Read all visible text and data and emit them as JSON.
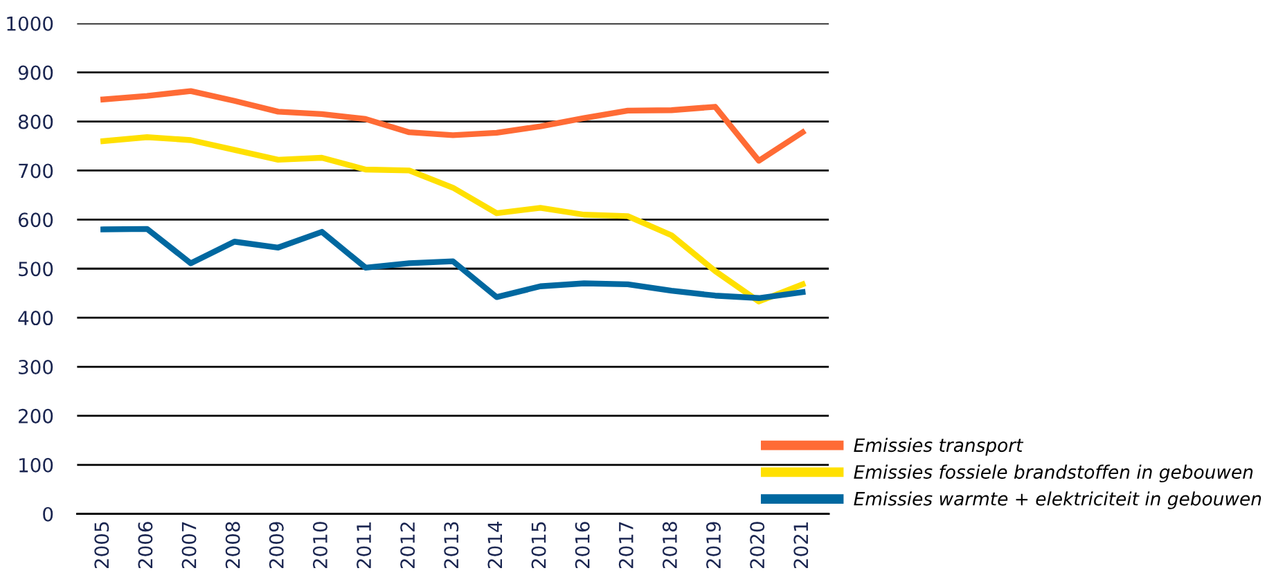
{
  "chart_data": {
    "type": "line",
    "categories": [
      "2005",
      "2006",
      "2007",
      "2008",
      "2009",
      "2010",
      "2011",
      "2012",
      "2013",
      "2014",
      "2015",
      "2016",
      "2017",
      "2018",
      "2019",
      "2020",
      "2021"
    ],
    "series": [
      {
        "name": "Emissies transport",
        "color": "#ff6b35",
        "values": [
          845,
          852,
          862,
          842,
          820,
          815,
          805,
          778,
          772,
          777,
          790,
          807,
          822,
          823,
          830,
          720,
          778
        ]
      },
      {
        "name": "Emissies fossiele brandstoffen in gebouwen",
        "color": "#ffe000",
        "values": [
          760,
          768,
          762,
          742,
          722,
          726,
          702,
          700,
          665,
          613,
          624,
          610,
          607,
          568,
          495,
          433,
          468
        ]
      },
      {
        "name": "Emissies warmte + elektriciteit in gebouwen",
        "color": "#0068a0",
        "values": [
          580,
          581,
          511,
          555,
          543,
          575,
          502,
          511,
          515,
          442,
          464,
          470,
          468,
          455,
          445,
          440,
          452
        ]
      }
    ],
    "ylim": [
      0,
      1000
    ],
    "yticks": [
      0,
      100,
      200,
      300,
      400,
      500,
      600,
      700,
      800,
      900,
      1000
    ],
    "grid": "y",
    "legend": "bottom right",
    "marker": "none",
    "line_style": "solid"
  }
}
